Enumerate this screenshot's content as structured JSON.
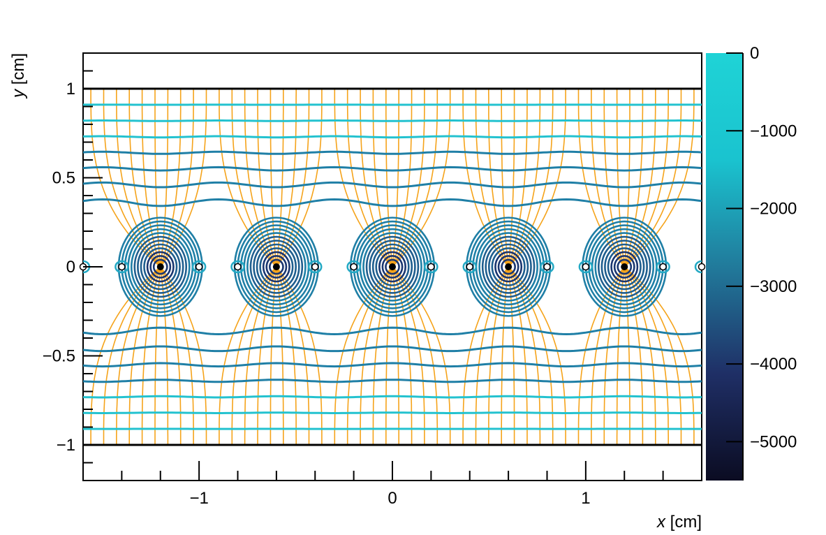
{
  "chart_data": {
    "type": "contour",
    "xlabel_var": "x",
    "xlabel_unit": " [cm]",
    "ylabel_var": "y",
    "ylabel_unit": " [cm]",
    "xlim": [
      -1.6,
      1.6
    ],
    "ylim": [
      -1.2,
      1.2
    ],
    "x_ticks": [
      -1,
      0,
      1
    ],
    "x_tick_labels": [
      "−1",
      "0",
      "1"
    ],
    "y_ticks": [
      -1,
      -0.5,
      0,
      0.5,
      1
    ],
    "y_tick_labels": [
      "−1",
      "−0.5",
      "0",
      "0.5",
      "1"
    ],
    "planes_y": [
      -1,
      1
    ],
    "anode_wires_x": [
      -1.2,
      -0.6,
      0,
      0.6,
      1.2
    ],
    "cathode_wires_x": [
      -1.6,
      -1.4,
      -1.0,
      -0.8,
      -0.4,
      -0.2,
      0.2,
      0.4,
      0.8,
      1.0,
      1.4,
      1.6
    ],
    "colorbar": {
      "min": -5500,
      "max": 0,
      "ticks": [
        0,
        -1000,
        -2000,
        -3000,
        -4000,
        -5000
      ],
      "tick_labels": [
        "0",
        "−1000",
        "−2000",
        "−3000",
        "−4000",
        "−5000"
      ],
      "colors": [
        "#0b0c22",
        "#1f2f66",
        "#217a9b",
        "#1ac3cf",
        "#1fd3d6"
      ]
    },
    "equipotential_color_top": "#23c2cf",
    "equipotential_color_mid": "#1f7fa6",
    "field_line_color": "#f5a31a"
  }
}
